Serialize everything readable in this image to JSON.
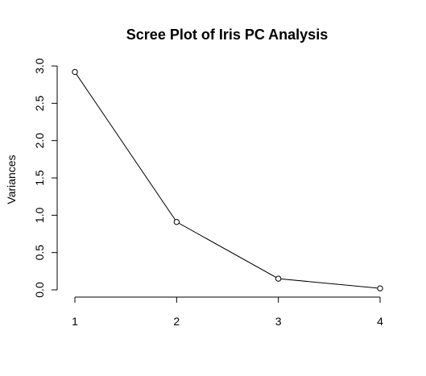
{
  "chart_data": {
    "type": "line",
    "title": "Scree Plot of Iris PC Analysis",
    "xlabel": "",
    "ylabel": "Variances",
    "x": [
      1,
      2,
      3,
      4
    ],
    "values": [
      2.92,
      0.91,
      0.15,
      0.02
    ],
    "xticks": [
      "1",
      "2",
      "3",
      "4"
    ],
    "yticks": [
      "0.0",
      "0.5",
      "1.0",
      "1.5",
      "2.0",
      "2.5",
      "3.0"
    ],
    "ylim": [
      0,
      3
    ],
    "xlim": [
      1,
      4
    ],
    "grid": false,
    "line_color": "#000000",
    "marker": "open-circle"
  }
}
